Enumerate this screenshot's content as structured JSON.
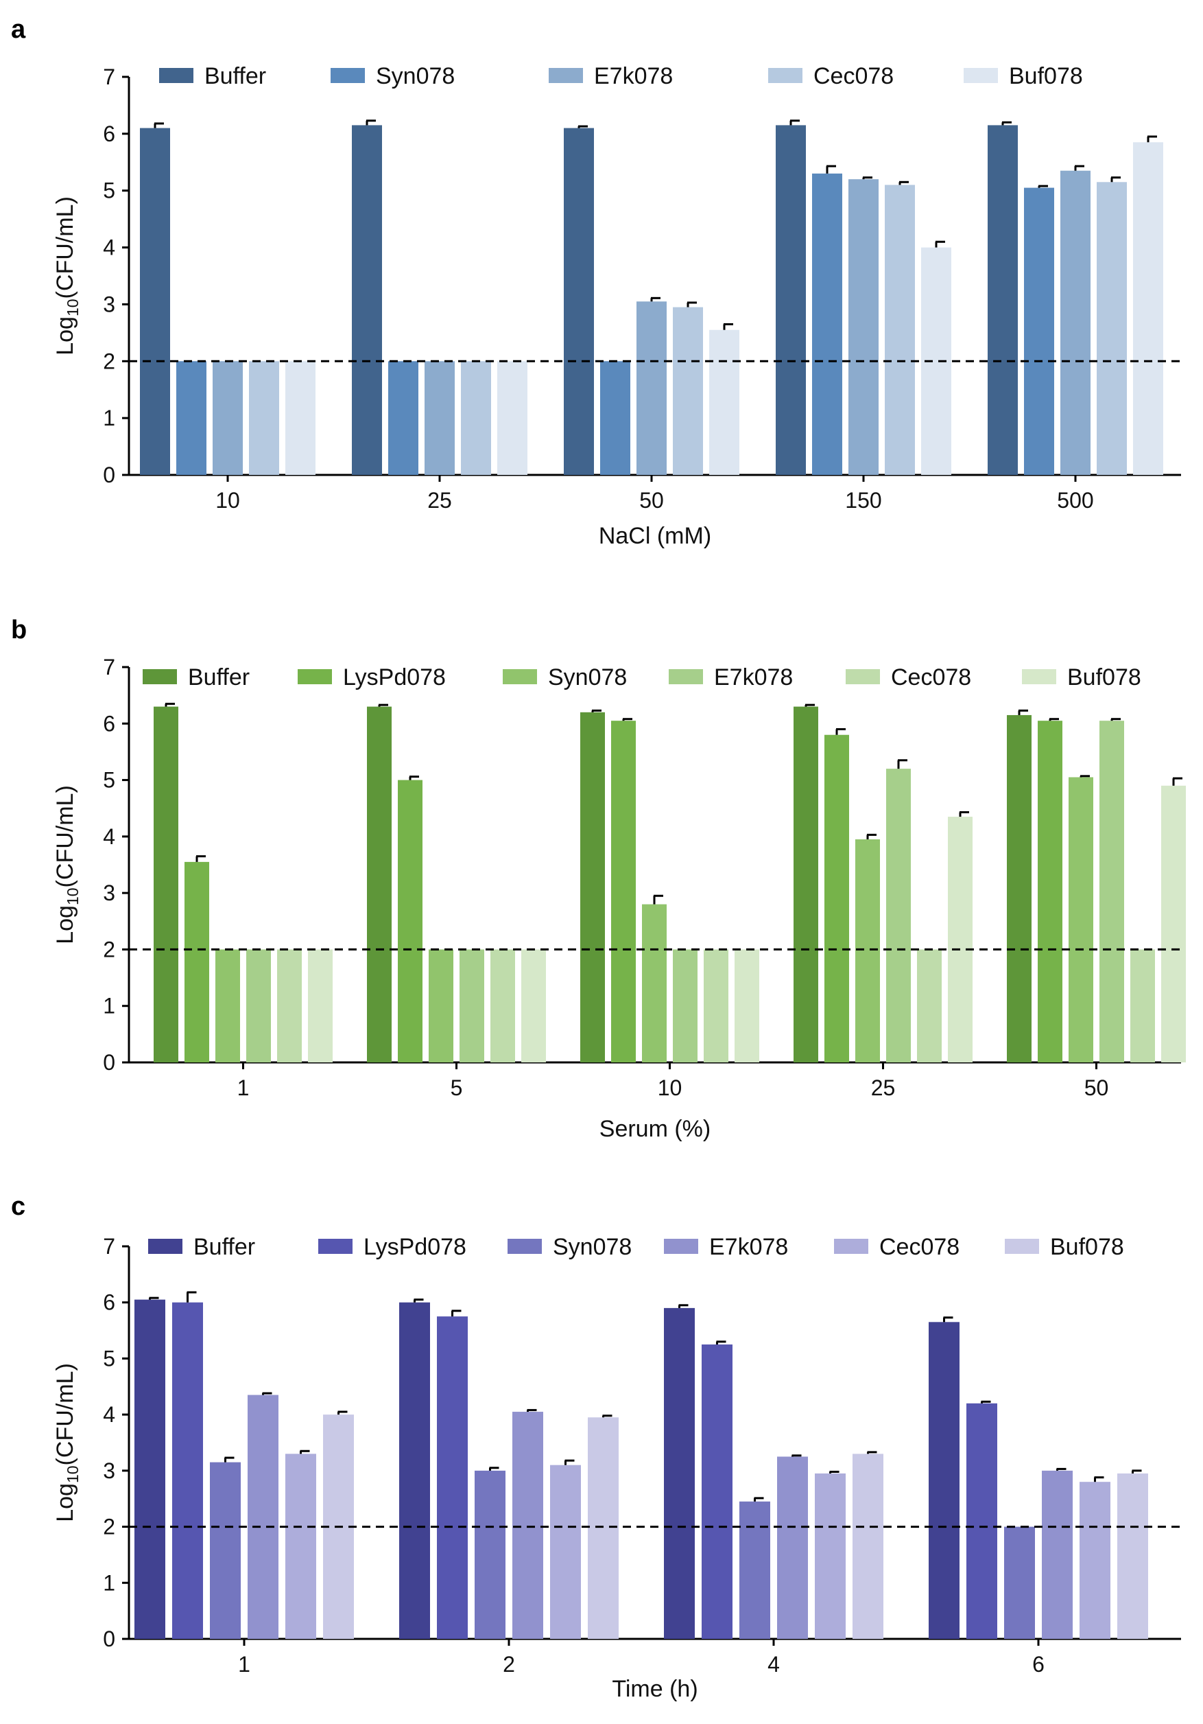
{
  "chart_data": [
    {
      "panel": "a",
      "type": "bar",
      "title": "",
      "ylabel": "Log10(CFU/mL)",
      "ylabel_main": "Log",
      "ylabel_sub": "10",
      "ylabel_rest": "(CFU/mL)",
      "xlabel": "NaCl (mM)",
      "ylim": [
        0,
        7
      ],
      "yticks": [
        "0",
        "1",
        "2",
        "3",
        "4",
        "5",
        "6",
        "7"
      ],
      "detection_limit": 2,
      "legend_position": "top",
      "categories": [
        "10",
        "25",
        "50",
        "150",
        "500"
      ],
      "series": [
        {
          "name": "Buffer",
          "color": "#41648d",
          "values": [
            6.1,
            6.15,
            6.1,
            6.15,
            6.15
          ],
          "errors": [
            0.08,
            0.08,
            0.03,
            0.08,
            0.05
          ]
        },
        {
          "name": "Syn078",
          "color": "#5a89bc",
          "values": [
            2.0,
            2.0,
            2.0,
            5.3,
            5.05
          ],
          "errors": [
            0,
            0,
            0,
            0.13,
            0.03
          ]
        },
        {
          "name": "E7k078",
          "color": "#8cabcd",
          "values": [
            2.0,
            2.0,
            3.05,
            5.2,
            5.35
          ],
          "errors": [
            0,
            0,
            0.06,
            0.03,
            0.08
          ]
        },
        {
          "name": "Cec078",
          "color": "#b5c9e0",
          "values": [
            2.0,
            2.0,
            2.95,
            5.1,
            5.15
          ],
          "errors": [
            0,
            0,
            0.08,
            0.05,
            0.08
          ]
        },
        {
          "name": "Buf078",
          "color": "#dde6f1",
          "values": [
            2.0,
            2.0,
            2.55,
            4.0,
            5.85
          ],
          "errors": [
            0,
            0,
            0.1,
            0.1,
            0.1
          ]
        }
      ]
    },
    {
      "panel": "b",
      "type": "bar",
      "title": "",
      "ylabel": "Log10(CFU/mL)",
      "ylabel_main": "Log",
      "ylabel_sub": "10",
      "ylabel_rest": "(CFU/mL)",
      "xlabel": "Serum (%)",
      "ylim": [
        0,
        7
      ],
      "yticks": [
        "0",
        "1",
        "2",
        "3",
        "4",
        "5",
        "6",
        "7"
      ],
      "detection_limit": 2,
      "legend_position": "top",
      "categories": [
        "1",
        "5",
        "10",
        "25",
        "50"
      ],
      "series": [
        {
          "name": "Buffer",
          "color": "#5e9639",
          "values": [
            6.3,
            6.3,
            6.2,
            6.3,
            6.15
          ],
          "errors": [
            0.05,
            0.03,
            0.03,
            0.03,
            0.08
          ]
        },
        {
          "name": "LysPd078",
          "color": "#76b34a",
          "values": [
            3.55,
            5.0,
            6.05,
            5.8,
            6.05
          ],
          "errors": [
            0.1,
            0.06,
            0.03,
            0.1,
            0.03
          ]
        },
        {
          "name": "Syn078",
          "color": "#91c46c",
          "values": [
            2.0,
            2.0,
            2.8,
            3.95,
            5.05
          ],
          "errors": [
            0,
            0,
            0.15,
            0.08,
            0.02
          ]
        },
        {
          "name": "E7k078",
          "color": "#a6cf8b",
          "values": [
            2.0,
            2.0,
            2.0,
            5.2,
            6.05
          ],
          "errors": [
            0,
            0,
            0,
            0.15,
            0.03
          ]
        },
        {
          "name": "Cec078",
          "color": "#bfdcab",
          "values": [
            2.0,
            2.0,
            2.0,
            2.0,
            2.0
          ],
          "errors": [
            0,
            0,
            0,
            0,
            0
          ]
        },
        {
          "name": "Buf078",
          "color": "#d6e8c9",
          "values": [
            2.0,
            2.0,
            2.0,
            4.35,
            4.9
          ],
          "errors": [
            0,
            0,
            0,
            0.08,
            0.13
          ]
        }
      ]
    },
    {
      "panel": "c",
      "type": "bar",
      "title": "",
      "ylabel": "Log10(CFU/mL)",
      "ylabel_main": "Log",
      "ylabel_sub": "10",
      "ylabel_rest": "(CFU/mL)",
      "xlabel": "Time (h)",
      "ylim": [
        0,
        7
      ],
      "yticks": [
        "0",
        "1",
        "2",
        "3",
        "4",
        "5",
        "6",
        "7"
      ],
      "detection_limit": 2,
      "legend_position": "top",
      "categories": [
        "1",
        "2",
        "4",
        "6"
      ],
      "series": [
        {
          "name": "Buffer",
          "color": "#414291",
          "values": [
            6.05,
            6.0,
            5.9,
            5.65
          ],
          "errors": [
            0.03,
            0.05,
            0.05,
            0.08
          ]
        },
        {
          "name": "LysPd078",
          "color": "#5656b0",
          "values": [
            6.0,
            5.75,
            5.25,
            4.2
          ],
          "errors": [
            0.18,
            0.1,
            0.05,
            0.03
          ]
        },
        {
          "name": "Syn078",
          "color": "#7476bf",
          "values": [
            3.15,
            3.0,
            2.45,
            2.0
          ],
          "errors": [
            0.08,
            0.05,
            0.06,
            0
          ]
        },
        {
          "name": "E7k078",
          "color": "#9192ce",
          "values": [
            4.35,
            4.05,
            3.25,
            3.0
          ],
          "errors": [
            0.03,
            0.03,
            0.02,
            0.03
          ]
        },
        {
          "name": "Cec078",
          "color": "#adaddb",
          "values": [
            3.3,
            3.1,
            2.95,
            2.8
          ],
          "errors": [
            0.05,
            0.08,
            0.03,
            0.08
          ]
        },
        {
          "name": "Buf078",
          "color": "#c9c9e6",
          "values": [
            4.0,
            3.95,
            3.3,
            2.95
          ],
          "errors": [
            0.05,
            0.03,
            0.03,
            0.05
          ]
        }
      ]
    }
  ]
}
